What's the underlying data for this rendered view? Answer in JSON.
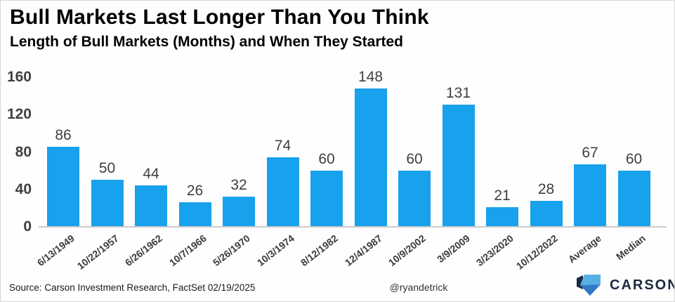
{
  "header": {
    "title": "Bull Markets Last Longer Than You Think",
    "subtitle": "Length of Bull Markets (Months) and When They Started"
  },
  "footer": {
    "source": "Source: Carson Investment Research, FactSet 02/19/2025",
    "handle": "@ryandetrick",
    "brand": "CARSON"
  },
  "colors": {
    "bar": "#18a1ec",
    "value_label": "#3f3f3f",
    "tick_label": "#404040",
    "axis_line": "#cbcbcb",
    "logo_light": "#57b0e3",
    "logo_navy": "#1a2b45",
    "logo_mid": "#2e7bc4",
    "brand_text": "#1b2940"
  },
  "chart_data": {
    "type": "bar",
    "title": "Bull Markets Last Longer Than You Think",
    "subtitle": "Length of Bull Markets (Months) and When They Started",
    "categories": [
      "6/13/1949",
      "10/22/1957",
      "6/26/1962",
      "10/7/1966",
      "5/26/1970",
      "10/3/1974",
      "8/12/1982",
      "12/4/1987",
      "10/9/2002",
      "3/9/2009",
      "3/23/2020",
      "10/12/2022",
      "Average",
      "Median"
    ],
    "values": [
      86,
      50,
      44,
      26,
      32,
      74,
      60,
      148,
      60,
      131,
      21,
      28,
      67,
      60
    ],
    "xlabel": "",
    "ylabel": "",
    "ylim": [
      0,
      160
    ],
    "yticks": [
      0,
      40,
      80,
      120,
      160
    ],
    "grid": false,
    "legend": false,
    "bar_color": "#18a1ec",
    "value_labels": true,
    "x_tick_rotation_deg": -38
  }
}
